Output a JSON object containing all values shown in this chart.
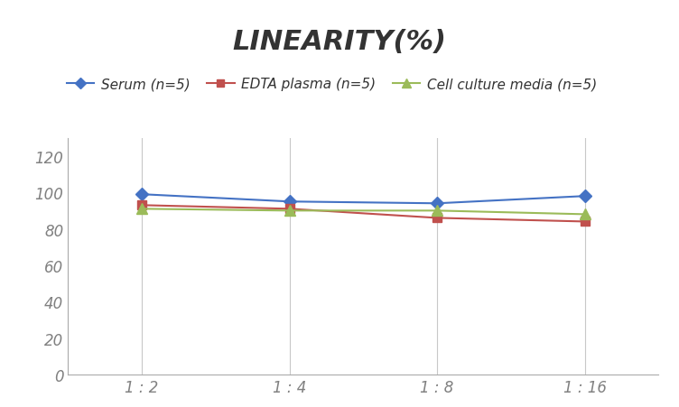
{
  "title": "LINEARITY(%)",
  "x_labels": [
    "1 : 2",
    "1 : 4",
    "1 : 8",
    "1 : 16"
  ],
  "x_positions": [
    0,
    1,
    2,
    3
  ],
  "series": [
    {
      "label": "Serum (n=5)",
      "values": [
        99,
        95,
        94,
        98
      ],
      "color": "#4472C4",
      "marker": "D",
      "markersize": 7,
      "linewidth": 1.5
    },
    {
      "label": "EDTA plasma (n=5)",
      "values": [
        93,
        91,
        86,
        84
      ],
      "color": "#C0504D",
      "marker": "s",
      "markersize": 7,
      "linewidth": 1.5
    },
    {
      "label": "Cell culture media (n=5)",
      "values": [
        91,
        90,
        90,
        88
      ],
      "color": "#9BBB59",
      "marker": "^",
      "markersize": 8,
      "linewidth": 1.5
    }
  ],
  "ylim": [
    0,
    130
  ],
  "yticks": [
    0,
    20,
    40,
    60,
    80,
    100,
    120
  ],
  "background_color": "#FFFFFF",
  "title_fontsize": 22,
  "legend_fontsize": 11,
  "tick_fontsize": 12,
  "grid_color": "#C8C8C8",
  "tick_color": "#808080"
}
